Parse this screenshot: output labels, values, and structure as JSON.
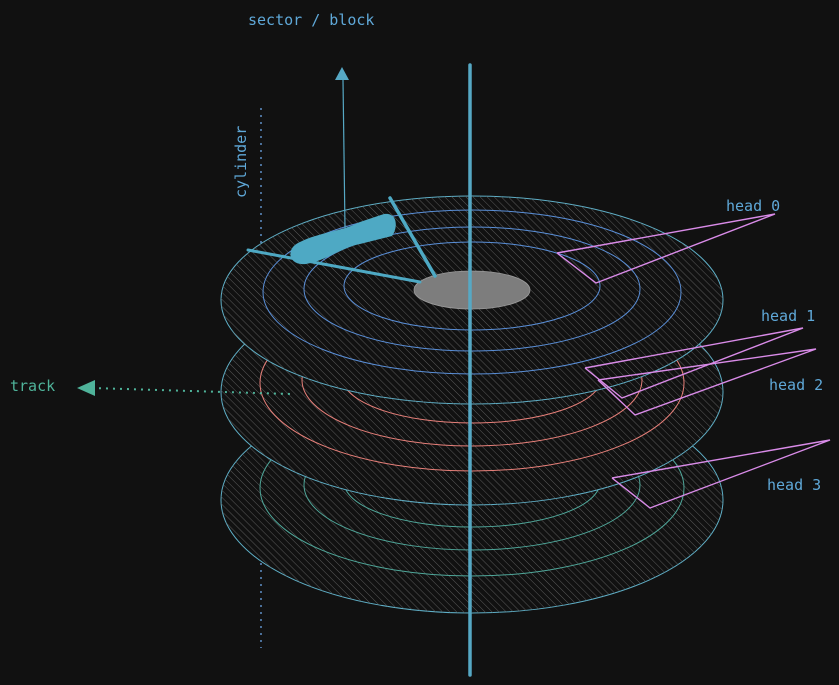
{
  "labels": {
    "sector_block": "sector / block",
    "cylinder": "cylinder",
    "track": "track",
    "heads": [
      "head 0",
      "head 1",
      "head 2",
      "head 3"
    ]
  },
  "colors": {
    "background": "#111111",
    "spindle": "#56a8c4",
    "platter_edge": "#5fb0c8",
    "hatch": "#5a5a5a",
    "hub": "#7d7d7d",
    "tracks_top": "#5a8fd8",
    "tracks_middle": "#e8807a",
    "tracks_bottom": "#4fa79a",
    "head_lines": "#d98be8",
    "label_blue": "#5fa8d8",
    "label_teal": "#4fb39a",
    "actuator": "#4ea9c4"
  },
  "icons": [
    "actuator-arm-icon",
    "arrow-up-icon",
    "arrow-left-icon"
  ]
}
